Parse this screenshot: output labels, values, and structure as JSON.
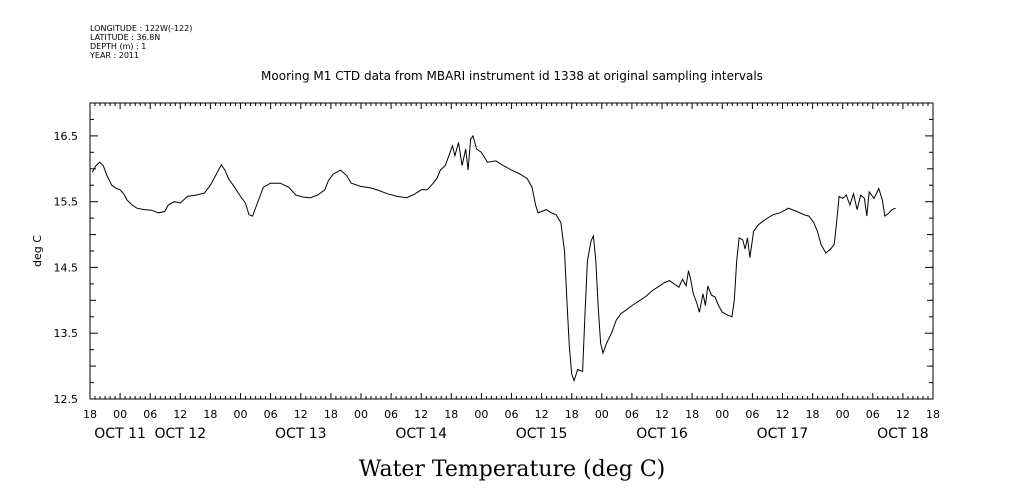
{
  "metadata": {
    "longitude": "LONGITUDE : 122W(-122)",
    "latitude": "LATITUDE : 36.8N",
    "depth": "DEPTH (m) : 1",
    "year": "YEAR : 2011"
  },
  "chart_data": {
    "type": "line",
    "title": "Mooring M1 CTD data from MBARI instrument id 1338 at original sampling intervals",
    "ylabel": "deg C",
    "xlabel": "Water Temperature (deg C)",
    "ylim": [
      12.5,
      17.0
    ],
    "xlim": [
      -0.25,
      6.75
    ],
    "x_unit": "days since Oct 11 00:00",
    "y_ticks": [
      12.5,
      13.5,
      14.5,
      15.5,
      16.5
    ],
    "y_tick_labels": [
      "12.5",
      "13.5",
      "14.5",
      "15.5",
      "16.5"
    ],
    "x_hour_ticks": [
      {
        "t": -0.25,
        "label": "18"
      },
      {
        "t": 0.0,
        "label": "00"
      },
      {
        "t": 0.25,
        "label": "06"
      },
      {
        "t": 0.5,
        "label": "12"
      },
      {
        "t": 0.75,
        "label": "18"
      },
      {
        "t": 1.0,
        "label": "00"
      },
      {
        "t": 1.25,
        "label": "06"
      },
      {
        "t": 1.5,
        "label": "12"
      },
      {
        "t": 1.75,
        "label": "18"
      },
      {
        "t": 2.0,
        "label": "00"
      },
      {
        "t": 2.25,
        "label": "06"
      },
      {
        "t": 2.5,
        "label": "12"
      },
      {
        "t": 2.75,
        "label": "18"
      },
      {
        "t": 3.0,
        "label": "00"
      },
      {
        "t": 3.25,
        "label": "06"
      },
      {
        "t": 3.5,
        "label": "12"
      },
      {
        "t": 3.75,
        "label": "18"
      },
      {
        "t": 4.0,
        "label": "00"
      },
      {
        "t": 4.25,
        "label": "06"
      },
      {
        "t": 4.5,
        "label": "12"
      },
      {
        "t": 4.75,
        "label": "18"
      },
      {
        "t": 5.0,
        "label": "00"
      },
      {
        "t": 5.25,
        "label": "06"
      },
      {
        "t": 5.5,
        "label": "12"
      },
      {
        "t": 5.75,
        "label": "18"
      },
      {
        "t": 6.0,
        "label": "00"
      },
      {
        "t": 6.25,
        "label": "06"
      },
      {
        "t": 6.5,
        "label": "12"
      },
      {
        "t": 6.75,
        "label": "18"
      }
    ],
    "x_date_labels": [
      {
        "t": 0.0,
        "label": "OCT 11"
      },
      {
        "t": 0.5,
        "label": "OCT 12"
      },
      {
        "t": 1.5,
        "label": "OCT 13"
      },
      {
        "t": 2.5,
        "label": "OCT 14"
      },
      {
        "t": 3.5,
        "label": "OCT 15"
      },
      {
        "t": 4.5,
        "label": "OCT 16"
      },
      {
        "t": 5.5,
        "label": "OCT 17"
      },
      {
        "t": 6.5,
        "label": "OCT 18"
      }
    ],
    "grid": false,
    "series": [
      {
        "color": "#000000",
        "points": [
          [
            -0.23,
            15.95
          ],
          [
            -0.2,
            16.05
          ],
          [
            -0.17,
            16.1
          ],
          [
            -0.14,
            16.05
          ],
          [
            -0.11,
            15.9
          ],
          [
            -0.07,
            15.75
          ],
          [
            -0.03,
            15.7
          ],
          [
            0.0,
            15.68
          ],
          [
            0.03,
            15.62
          ],
          [
            0.06,
            15.52
          ],
          [
            0.1,
            15.45
          ],
          [
            0.14,
            15.4
          ],
          [
            0.2,
            15.38
          ],
          [
            0.26,
            15.37
          ],
          [
            0.32,
            15.33
          ],
          [
            0.37,
            15.35
          ],
          [
            0.4,
            15.45
          ],
          [
            0.45,
            15.5
          ],
          [
            0.5,
            15.48
          ],
          [
            0.56,
            15.58
          ],
          [
            0.63,
            15.6
          ],
          [
            0.7,
            15.63
          ],
          [
            0.75,
            15.75
          ],
          [
            0.8,
            15.92
          ],
          [
            0.84,
            16.06
          ],
          [
            0.87,
            15.98
          ],
          [
            0.9,
            15.85
          ],
          [
            0.95,
            15.72
          ],
          [
            1.0,
            15.58
          ],
          [
            1.04,
            15.48
          ],
          [
            1.07,
            15.3
          ],
          [
            1.1,
            15.28
          ],
          [
            1.14,
            15.48
          ],
          [
            1.19,
            15.72
          ],
          [
            1.25,
            15.78
          ],
          [
            1.33,
            15.78
          ],
          [
            1.4,
            15.72
          ],
          [
            1.46,
            15.6
          ],
          [
            1.52,
            15.57
          ],
          [
            1.58,
            15.56
          ],
          [
            1.64,
            15.6
          ],
          [
            1.7,
            15.68
          ],
          [
            1.73,
            15.82
          ],
          [
            1.77,
            15.92
          ],
          [
            1.83,
            15.98
          ],
          [
            1.88,
            15.9
          ],
          [
            1.92,
            15.78
          ],
          [
            2.0,
            15.73
          ],
          [
            2.08,
            15.71
          ],
          [
            2.15,
            15.67
          ],
          [
            2.22,
            15.62
          ],
          [
            2.3,
            15.58
          ],
          [
            2.38,
            15.56
          ],
          [
            2.45,
            15.62
          ],
          [
            2.5,
            15.68
          ],
          [
            2.55,
            15.68
          ],
          [
            2.6,
            15.78
          ],
          [
            2.63,
            15.85
          ],
          [
            2.66,
            15.98
          ],
          [
            2.7,
            16.05
          ],
          [
            2.73,
            16.2
          ],
          [
            2.76,
            16.35
          ],
          [
            2.78,
            16.2
          ],
          [
            2.81,
            16.4
          ],
          [
            2.84,
            16.05
          ],
          [
            2.87,
            16.3
          ],
          [
            2.89,
            15.98
          ],
          [
            2.91,
            16.45
          ],
          [
            2.93,
            16.5
          ],
          [
            2.96,
            16.3
          ],
          [
            3.0,
            16.25
          ],
          [
            3.05,
            16.1
          ],
          [
            3.12,
            16.12
          ],
          [
            3.18,
            16.05
          ],
          [
            3.25,
            15.98
          ],
          [
            3.32,
            15.92
          ],
          [
            3.38,
            15.85
          ],
          [
            3.42,
            15.72
          ],
          [
            3.45,
            15.45
          ],
          [
            3.47,
            15.33
          ],
          [
            3.5,
            15.35
          ],
          [
            3.54,
            15.38
          ],
          [
            3.58,
            15.33
          ],
          [
            3.62,
            15.3
          ],
          [
            3.66,
            15.18
          ],
          [
            3.69,
            14.75
          ],
          [
            3.71,
            14.0
          ],
          [
            3.73,
            13.3
          ],
          [
            3.75,
            12.88
          ],
          [
            3.77,
            12.78
          ],
          [
            3.8,
            12.95
          ],
          [
            3.84,
            12.92
          ],
          [
            3.86,
            13.8
          ],
          [
            3.88,
            14.6
          ],
          [
            3.91,
            14.9
          ],
          [
            3.93,
            14.98
          ],
          [
            3.95,
            14.6
          ],
          [
            3.97,
            13.9
          ],
          [
            3.99,
            13.35
          ],
          [
            4.01,
            13.2
          ],
          [
            4.04,
            13.35
          ],
          [
            4.08,
            13.5
          ],
          [
            4.12,
            13.7
          ],
          [
            4.16,
            13.8
          ],
          [
            4.2,
            13.85
          ],
          [
            4.25,
            13.92
          ],
          [
            4.3,
            13.98
          ],
          [
            4.36,
            14.05
          ],
          [
            4.42,
            14.15
          ],
          [
            4.48,
            14.22
          ],
          [
            4.52,
            14.27
          ],
          [
            4.56,
            14.3
          ],
          [
            4.6,
            14.25
          ],
          [
            4.64,
            14.2
          ],
          [
            4.67,
            14.32
          ],
          [
            4.7,
            14.22
          ],
          [
            4.72,
            14.45
          ],
          [
            4.74,
            14.3
          ],
          [
            4.76,
            14.1
          ],
          [
            4.79,
            13.95
          ],
          [
            4.81,
            13.82
          ],
          [
            4.84,
            14.1
          ],
          [
            4.86,
            13.92
          ],
          [
            4.88,
            14.22
          ],
          [
            4.91,
            14.08
          ],
          [
            4.94,
            14.05
          ],
          [
            4.97,
            13.92
          ],
          [
            5.0,
            13.82
          ],
          [
            5.04,
            13.78
          ],
          [
            5.08,
            13.75
          ],
          [
            5.1,
            14.0
          ],
          [
            5.12,
            14.6
          ],
          [
            5.14,
            14.95
          ],
          [
            5.17,
            14.92
          ],
          [
            5.19,
            14.78
          ],
          [
            5.21,
            14.95
          ],
          [
            5.23,
            14.65
          ],
          [
            5.26,
            15.05
          ],
          [
            5.3,
            15.15
          ],
          [
            5.35,
            15.22
          ],
          [
            5.42,
            15.3
          ],
          [
            5.48,
            15.33
          ],
          [
            5.55,
            15.4
          ],
          [
            5.62,
            15.35
          ],
          [
            5.68,
            15.3
          ],
          [
            5.72,
            15.28
          ],
          [
            5.76,
            15.18
          ],
          [
            5.79,
            15.05
          ],
          [
            5.82,
            14.85
          ],
          [
            5.86,
            14.72
          ],
          [
            5.9,
            14.78
          ],
          [
            5.93,
            14.85
          ],
          [
            5.95,
            15.2
          ],
          [
            5.97,
            15.58
          ],
          [
            6.0,
            15.55
          ],
          [
            6.03,
            15.6
          ],
          [
            6.06,
            15.45
          ],
          [
            6.09,
            15.62
          ],
          [
            6.12,
            15.38
          ],
          [
            6.15,
            15.6
          ],
          [
            6.18,
            15.55
          ],
          [
            6.2,
            15.28
          ],
          [
            6.22,
            15.65
          ],
          [
            6.26,
            15.55
          ],
          [
            6.3,
            15.7
          ],
          [
            6.33,
            15.52
          ],
          [
            6.35,
            15.28
          ],
          [
            6.38,
            15.32
          ],
          [
            6.41,
            15.38
          ],
          [
            6.44,
            15.4
          ]
        ]
      }
    ]
  }
}
